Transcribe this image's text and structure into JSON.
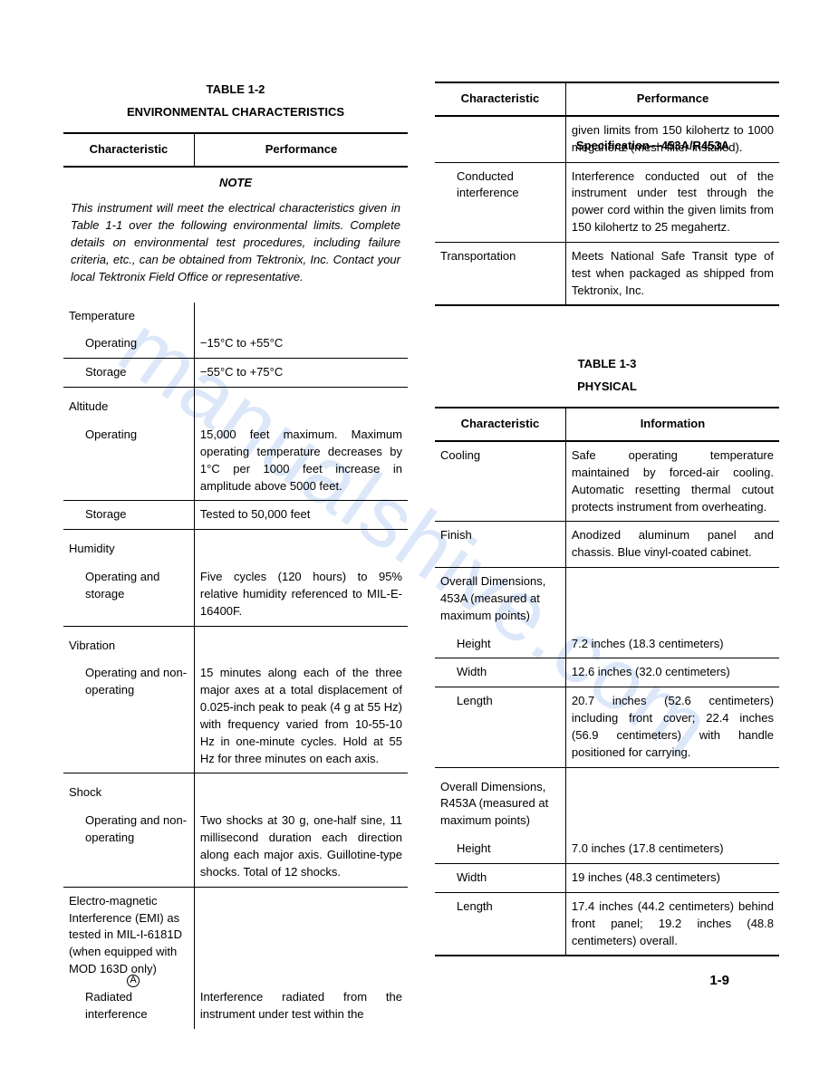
{
  "doc": {
    "header": "Specification—453A/R453A",
    "watermark": "manualshive.com",
    "footer_mark": "A",
    "page_num": "1-9"
  },
  "table12": {
    "number": "TABLE 1-2",
    "title": "ENVIRONMENTAL CHARACTERISTICS",
    "col1": "Characteristic",
    "col2": "Performance",
    "note_label": "NOTE",
    "note_body": "This instrument will meet the electrical characteristics given in Table 1-1 over the following environmental limits. Complete details on environmental test procedures, including failure criteria, etc., can be obtained from Tektronix, Inc. Contact your local Tektronix Field Office or representative.",
    "rows_left": [
      {
        "c": "Temperature",
        "p": "",
        "indent": 0,
        "border": false
      },
      {
        "c": "Operating",
        "p": "−15°C to +55°C",
        "indent": 1,
        "border": true
      },
      {
        "c": "Storage",
        "p": "−55°C to +75°C",
        "indent": 1,
        "border": true
      },
      {
        "c": "Altitude",
        "p": "",
        "indent": 0,
        "border": false,
        "pad_top": true
      },
      {
        "c": "Operating",
        "p": "15,000 feet maximum. Maximum operating temperature decreases by 1°C per 1000 feet increase in amplitude above 5000 feet.",
        "indent": 1,
        "border": true
      },
      {
        "c": "Storage",
        "p": "Tested to 50,000 feet",
        "indent": 1,
        "border": true
      },
      {
        "c": "Humidity",
        "p": "",
        "indent": 0,
        "border": false,
        "pad_top": true
      },
      {
        "c": "Operating and storage",
        "p": "Five cycles (120 hours) to 95% relative humidity referenced to MIL-E-16400F.",
        "indent": 1,
        "border": true
      },
      {
        "c": "Vibration",
        "p": "",
        "indent": 0,
        "border": false,
        "pad_top": true
      },
      {
        "c": "Operating and non-operating",
        "p": "15 minutes along each of the three major axes at a total displacement of 0.025-inch peak to peak (4 g at 55 Hz) with frequency varied from 10-55-10 Hz in one-minute cycles. Hold at 55 Hz for three minutes on each axis.",
        "indent": 1,
        "border": true
      },
      {
        "c": "Shock",
        "p": "",
        "indent": 0,
        "border": false,
        "pad_top": true
      },
      {
        "c": "Operating and non-operating",
        "p": "Two shocks at 30 g, one-half sine, 11 millisecond duration each direction along each major axis. Guillotine-type shocks. Total of 12 shocks.",
        "indent": 1,
        "border": true
      },
      {
        "c": "Electro-magnetic Interference (EMI) as tested in MIL-I-6181D (when equipped with MOD 163D only)",
        "p": "",
        "indent": 0,
        "border": false
      },
      {
        "c": "Radiated interference",
        "p": "Interference radiated from the instrument under test within the",
        "indent": 1,
        "border": false
      }
    ],
    "rows_right_cont": [
      {
        "c": "",
        "p": "given limits from 150 kilohertz to 1000 megahertz (mesh filter installed).",
        "indent": 0,
        "border": true
      },
      {
        "c": "Conducted interference",
        "p": "Interference conducted out of the instrument under test through the power cord within the given limits from 150 kilohertz to 25 megahertz.",
        "indent": 1,
        "border": true
      },
      {
        "c": "Transportation",
        "p": "Meets National Safe Transit type of test when packaged as shipped from Tektronix, Inc.",
        "indent": 0,
        "border": true,
        "thick": true
      }
    ]
  },
  "table13": {
    "number": "TABLE 1-3",
    "title": "PHYSICAL",
    "col1": "Characteristic",
    "col2": "Information",
    "rows": [
      {
        "c": "Cooling",
        "p": "Safe operating temperature maintained by forced-air cooling. Automatic resetting thermal cutout protects instrument from overheating.",
        "indent": 0,
        "border": true
      },
      {
        "c": "Finish",
        "p": "Anodized aluminum panel and chassis. Blue vinyl-coated cabinet.",
        "indent": 0,
        "border": true
      },
      {
        "c": "Overall Dimensions, 453A (measured at maximum points)",
        "p": "",
        "indent": 0,
        "border": false
      },
      {
        "c": "Height",
        "p": "7.2 inches (18.3 centimeters)",
        "indent": 1,
        "border": true
      },
      {
        "c": "Width",
        "p": "12.6 inches (32.0 centimeters)",
        "indent": 1,
        "border": true
      },
      {
        "c": "Length",
        "p": "20.7 inches (52.6 centimeters) including front cover; 22.4 inches (56.9 centimeters) with handle positioned for carrying.",
        "indent": 1,
        "border": true
      },
      {
        "c": "Overall Dimensions, R453A (measured at maximum points)",
        "p": "",
        "indent": 0,
        "border": false,
        "pad_top": true
      },
      {
        "c": "Height",
        "p": "7.0 inches (17.8 centimeters)",
        "indent": 1,
        "border": true
      },
      {
        "c": "Width",
        "p": "19 inches (48.3 centimeters)",
        "indent": 1,
        "border": true
      },
      {
        "c": "Length",
        "p": "17.4 inches (44.2 centimeters) behind front panel; 19.2 inches (48.8 centimeters) overall.",
        "indent": 1,
        "border": true,
        "thick": true
      }
    ]
  },
  "style": {
    "text_color": "#000000",
    "background": "#ffffff",
    "watermark_color": "rgba(60,130,220,0.18)",
    "font_size_body": 13,
    "font_size_pagenum": 15
  }
}
